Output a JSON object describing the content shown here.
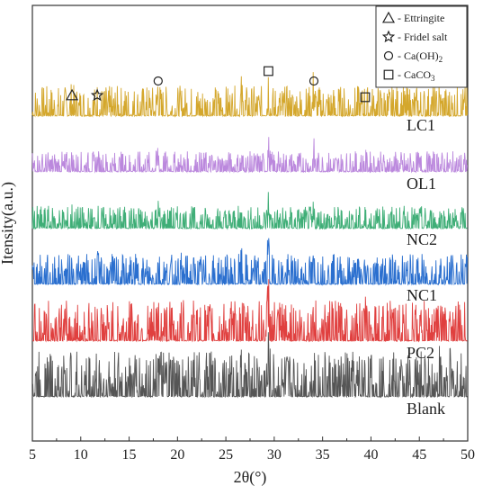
{
  "chart_data": {
    "type": "line",
    "title": "",
    "xlabel": "2θ(°)",
    "ylabel": "Itensity(a.u.)",
    "xlim": [
      5,
      50
    ],
    "xticks": [
      "5",
      "10",
      "15",
      "20",
      "25",
      "30",
      "35",
      "40",
      "45",
      "50"
    ],
    "xtick_values": [
      5,
      10,
      15,
      20,
      25,
      30,
      35,
      40,
      45,
      50
    ],
    "legend": [
      {
        "symbol": "triangle",
        "label": "- Ettringite",
        "label_sub": ""
      },
      {
        "symbol": "star",
        "label": "- Fridel salt",
        "label_sub": ""
      },
      {
        "symbol": "circle",
        "label": "- Ca(OH)",
        "label_sub": "2"
      },
      {
        "symbol": "square",
        "label": "- CaCO",
        "label_sub": "3"
      }
    ],
    "legend_position": "top-right",
    "annotations": [
      {
        "symbol": "triangle",
        "x": 9.1
      },
      {
        "symbol": "star",
        "x": 11.7
      },
      {
        "symbol": "circle",
        "x": 18.0
      },
      {
        "symbol": "square",
        "x": 29.4
      },
      {
        "symbol": "circle",
        "x": 34.1
      },
      {
        "symbol": "square",
        "x": 39.4
      }
    ],
    "series": [
      {
        "name": "LC1",
        "color": "#d4a72c",
        "peaks": [
          [
            9.1,
            0.25
          ],
          [
            11.7,
            0.2
          ],
          [
            18.0,
            0.9
          ],
          [
            26.6,
            0.45
          ],
          [
            29.4,
            1.0
          ],
          [
            34.1,
            0.95
          ],
          [
            39.4,
            0.2
          ],
          [
            47.1,
            0.35
          ]
        ]
      },
      {
        "name": "OL1",
        "color": "#bb88dd",
        "peaks": [
          [
            9.1,
            0.25
          ],
          [
            11.7,
            0.2
          ],
          [
            18.0,
            0.75
          ],
          [
            26.6,
            0.3
          ],
          [
            29.4,
            1.0
          ],
          [
            34.1,
            0.75
          ],
          [
            39.4,
            0.15
          ],
          [
            47.1,
            0.3
          ]
        ]
      },
      {
        "name": "NC2",
        "color": "#3fae77",
        "peaks": [
          [
            9.1,
            0.25
          ],
          [
            11.7,
            0.2
          ],
          [
            18.0,
            0.55
          ],
          [
            26.6,
            0.3
          ],
          [
            29.4,
            1.0
          ],
          [
            34.1,
            0.4
          ],
          [
            39.4,
            0.15
          ],
          [
            47.1,
            0.25
          ]
        ]
      },
      {
        "name": "NC1",
        "color": "#2a6fcf",
        "peaks": [
          [
            9.1,
            0.15
          ],
          [
            11.7,
            0.15
          ],
          [
            18.0,
            0.38
          ],
          [
            20.5,
            0.12
          ],
          [
            26.6,
            0.25
          ],
          [
            29.4,
            1.0
          ],
          [
            34.1,
            0.28
          ],
          [
            39.4,
            0.12
          ],
          [
            47.1,
            0.2
          ]
        ]
      },
      {
        "name": "PC2",
        "color": "#e0403f",
        "peaks": [
          [
            9.1,
            0.12
          ],
          [
            11.7,
            0.12
          ],
          [
            18.0,
            0.25
          ],
          [
            20.5,
            0.1
          ],
          [
            26.6,
            0.2
          ],
          [
            29.4,
            1.0
          ],
          [
            34.1,
            0.25
          ],
          [
            39.4,
            0.12
          ],
          [
            47.1,
            0.2
          ]
        ]
      },
      {
        "name": "Blank",
        "color": "#555555",
        "peaks": [
          [
            9.1,
            0.08
          ],
          [
            11.7,
            0.18
          ],
          [
            18.0,
            1.0
          ],
          [
            26.6,
            0.18
          ],
          [
            29.4,
            0.6
          ],
          [
            34.1,
            0.55
          ],
          [
            39.4,
            0.12
          ],
          [
            47.1,
            0.28
          ],
          [
            48.2,
            0.15
          ]
        ]
      }
    ]
  }
}
